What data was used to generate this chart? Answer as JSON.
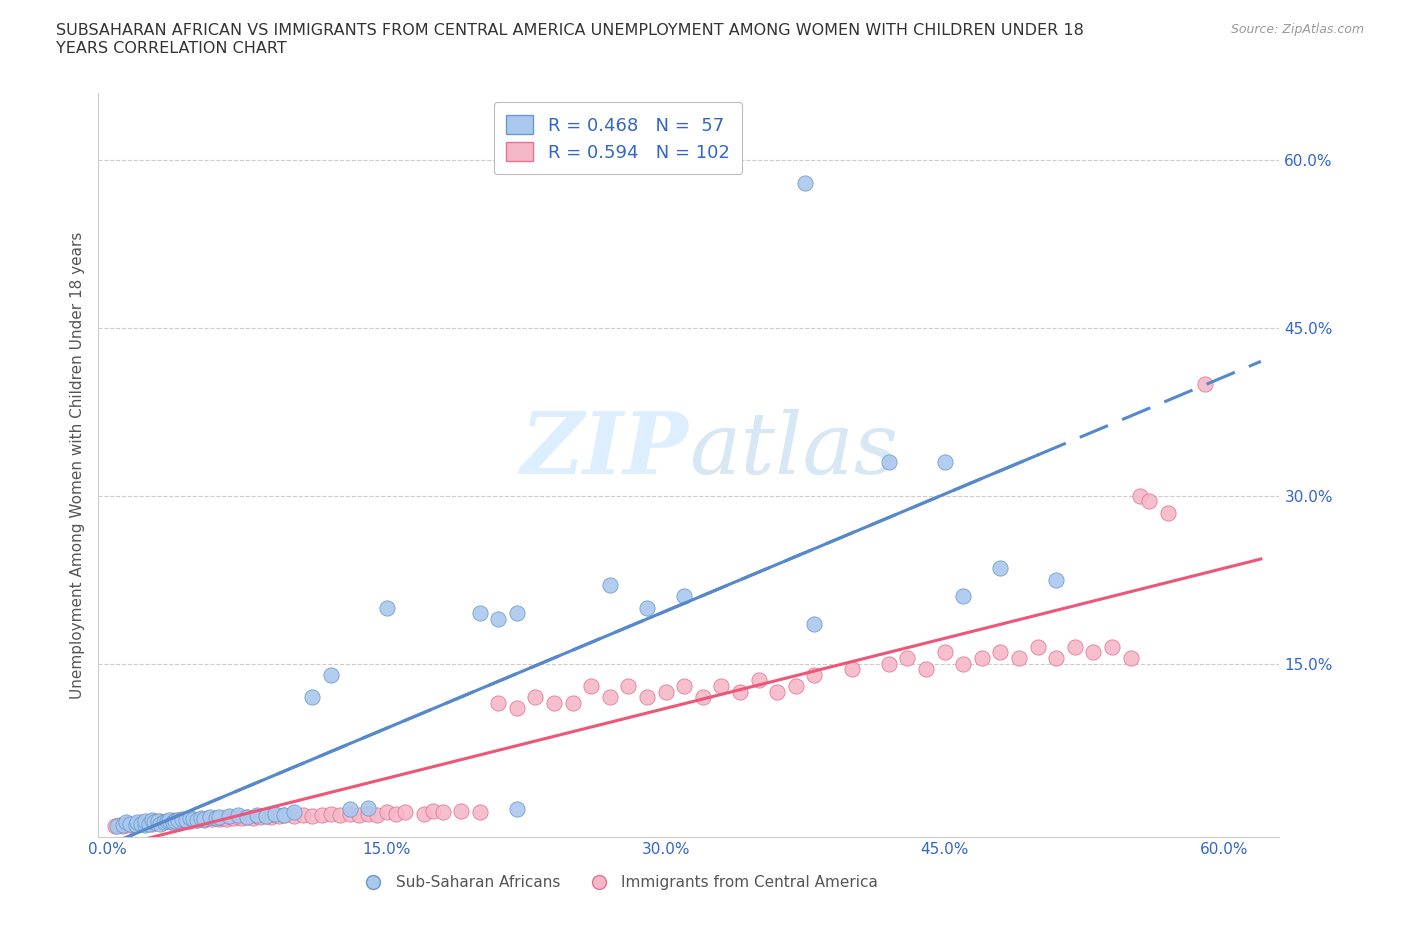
{
  "title": "SUBSAHARAN AFRICAN VS IMMIGRANTS FROM CENTRAL AMERICA UNEMPLOYMENT AMONG WOMEN WITH CHILDREN UNDER 18\nYEARS CORRELATION CHART",
  "source": "Source: ZipAtlas.com",
  "ylabel": "Unemployment Among Women with Children Under 18 years",
  "xlim": [
    -0.005,
    0.63
  ],
  "ylim": [
    -0.005,
    0.66
  ],
  "xtick_vals": [
    0.0,
    0.15,
    0.3,
    0.45,
    0.6
  ],
  "xtick_labels": [
    "0.0%",
    "15.0%",
    "30.0%",
    "45.0%",
    "60.0%"
  ],
  "ytick_vals": [
    0.15,
    0.3,
    0.45,
    0.6
  ],
  "ytick_labels": [
    "15.0%",
    "30.0%",
    "45.0%",
    "60.0%"
  ],
  "R_blue": 0.468,
  "N_blue": 57,
  "R_pink": 0.594,
  "N_pink": 102,
  "blue_scatter_color": "#aac8ee",
  "blue_edge_color": "#6699cc",
  "pink_scatter_color": "#f5b8c8",
  "pink_edge_color": "#e87090",
  "blue_line_color": "#5588cc",
  "pink_line_color": "#ee5577",
  "legend_text_color": "#3366cc",
  "tick_label_color": "#3366cc",
  "axis_color": "#cccccc",
  "grid_color": "#cccccc",
  "background_color": "#ffffff",
  "watermark_color": "#ddeeff",
  "blue_x": [
    0.005,
    0.008,
    0.01,
    0.012,
    0.015,
    0.016,
    0.018,
    0.02,
    0.02,
    0.022,
    0.024,
    0.025,
    0.027,
    0.028,
    0.03,
    0.032,
    0.033,
    0.035,
    0.036,
    0.038,
    0.04,
    0.042,
    0.044,
    0.046,
    0.048,
    0.05,
    0.052,
    0.055,
    0.058,
    0.06,
    0.065,
    0.07,
    0.075,
    0.08,
    0.085,
    0.09,
    0.095,
    0.1,
    0.11,
    0.12,
    0.13,
    0.14,
    0.15,
    0.2,
    0.21,
    0.22,
    0.22,
    0.27,
    0.29,
    0.31,
    0.375,
    0.38,
    0.42,
    0.45,
    0.46,
    0.48,
    0.51
  ],
  "blue_y": [
    0.005,
    0.006,
    0.008,
    0.007,
    0.006,
    0.008,
    0.007,
    0.006,
    0.009,
    0.007,
    0.01,
    0.008,
    0.009,
    0.007,
    0.008,
    0.009,
    0.01,
    0.008,
    0.009,
    0.01,
    0.011,
    0.01,
    0.012,
    0.011,
    0.01,
    0.012,
    0.011,
    0.013,
    0.012,
    0.013,
    0.014,
    0.015,
    0.013,
    0.015,
    0.014,
    0.016,
    0.015,
    0.017,
    0.12,
    0.14,
    0.02,
    0.021,
    0.2,
    0.195,
    0.19,
    0.195,
    0.02,
    0.22,
    0.2,
    0.21,
    0.58,
    0.185,
    0.33,
    0.33,
    0.21,
    0.235,
    0.225
  ],
  "pink_x": [
    0.004,
    0.006,
    0.008,
    0.01,
    0.012,
    0.014,
    0.015,
    0.016,
    0.018,
    0.02,
    0.022,
    0.024,
    0.025,
    0.026,
    0.028,
    0.03,
    0.032,
    0.034,
    0.035,
    0.036,
    0.038,
    0.04,
    0.042,
    0.044,
    0.046,
    0.048,
    0.05,
    0.052,
    0.054,
    0.056,
    0.058,
    0.06,
    0.062,
    0.064,
    0.066,
    0.068,
    0.07,
    0.072,
    0.075,
    0.078,
    0.08,
    0.082,
    0.085,
    0.088,
    0.09,
    0.092,
    0.095,
    0.1,
    0.105,
    0.11,
    0.115,
    0.12,
    0.125,
    0.13,
    0.135,
    0.14,
    0.145,
    0.15,
    0.155,
    0.16,
    0.17,
    0.175,
    0.18,
    0.19,
    0.2,
    0.21,
    0.22,
    0.23,
    0.24,
    0.25,
    0.26,
    0.27,
    0.28,
    0.29,
    0.3,
    0.31,
    0.32,
    0.33,
    0.34,
    0.35,
    0.36,
    0.37,
    0.38,
    0.4,
    0.42,
    0.43,
    0.44,
    0.45,
    0.46,
    0.47,
    0.48,
    0.49,
    0.5,
    0.51,
    0.52,
    0.53,
    0.54,
    0.55,
    0.555,
    0.56,
    0.57,
    0.59
  ],
  "pink_y": [
    0.005,
    0.006,
    0.005,
    0.007,
    0.006,
    0.006,
    0.007,
    0.006,
    0.008,
    0.007,
    0.008,
    0.007,
    0.009,
    0.008,
    0.009,
    0.008,
    0.009,
    0.008,
    0.01,
    0.009,
    0.01,
    0.009,
    0.01,
    0.009,
    0.011,
    0.01,
    0.011,
    0.01,
    0.012,
    0.011,
    0.012,
    0.011,
    0.012,
    0.011,
    0.013,
    0.012,
    0.013,
    0.012,
    0.013,
    0.012,
    0.014,
    0.013,
    0.014,
    0.013,
    0.015,
    0.014,
    0.015,
    0.014,
    0.015,
    0.014,
    0.015,
    0.016,
    0.015,
    0.016,
    0.015,
    0.016,
    0.015,
    0.017,
    0.016,
    0.017,
    0.016,
    0.018,
    0.017,
    0.018,
    0.017,
    0.115,
    0.11,
    0.12,
    0.115,
    0.115,
    0.13,
    0.12,
    0.13,
    0.12,
    0.125,
    0.13,
    0.12,
    0.13,
    0.125,
    0.135,
    0.125,
    0.13,
    0.14,
    0.145,
    0.15,
    0.155,
    0.145,
    0.16,
    0.15,
    0.155,
    0.16,
    0.155,
    0.165,
    0.155,
    0.165,
    0.16,
    0.165,
    0.155,
    0.3,
    0.295,
    0.285,
    0.4
  ]
}
